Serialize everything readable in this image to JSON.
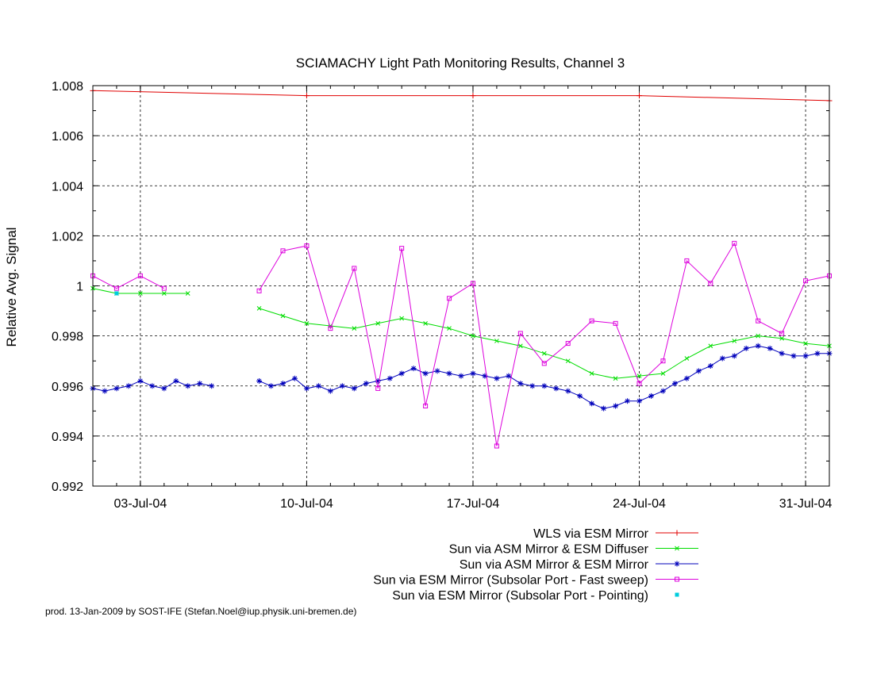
{
  "chart_data": {
    "type": "line",
    "title": "SCIAMACHY Light Path Monitoring Results, Channel 3",
    "xlabel": "",
    "ylabel": "Relative Avg. Signal",
    "xlim": [
      "2004-07-01",
      "2004-08-01"
    ],
    "ylim": [
      0.992,
      1.008
    ],
    "x_ticks": [
      "2004-07-03",
      "2004-07-10",
      "2004-07-17",
      "2004-07-24",
      "2004-07-31"
    ],
    "x_tick_labels": [
      "03-Jul-04",
      "10-Jul-04",
      "17-Jul-04",
      "24-Jul-04",
      "31-Jul-04"
    ],
    "y_ticks": [
      0.992,
      0.994,
      0.996,
      0.998,
      1,
      1.002,
      1.004,
      1.006,
      1.008
    ],
    "y_tick_labels": [
      "0.992",
      "0.994",
      "0.996",
      "0.998",
      "1",
      "1.002",
      "1.004",
      "1.006",
      "1.008"
    ],
    "grid": true,
    "legend_position": "bottom-right",
    "series": [
      {
        "name": "WLS via ESM Mirror",
        "color": "#e00000",
        "marker": "plus",
        "connect_gap_days": 20,
        "points": [
          [
            "2004-07-01",
            1.0078
          ],
          [
            "2004-07-10",
            1.0076
          ],
          [
            "2004-07-17",
            1.0076
          ],
          [
            "2004-07-24",
            1.0076
          ],
          [
            "2004-08-01",
            1.0074
          ]
        ]
      },
      {
        "name": "Sun via ASM Mirror & ESM Diffuser",
        "color": "#00dd00",
        "marker": "cross",
        "connect_gap_days": 2,
        "points": [
          [
            "2004-07-01",
            0.9999
          ],
          [
            "2004-07-02",
            0.9997
          ],
          [
            "2004-07-03",
            0.9997
          ],
          [
            "2004-07-04",
            0.9997
          ],
          [
            "2004-07-05",
            0.9997
          ],
          [
            "2004-07-08",
            0.9991
          ],
          [
            "2004-07-09",
            0.9988
          ],
          [
            "2004-07-10",
            0.9985
          ],
          [
            "2004-07-11",
            0.9984
          ],
          [
            "2004-07-12",
            0.9983
          ],
          [
            "2004-07-13",
            0.9985
          ],
          [
            "2004-07-14",
            0.9987
          ],
          [
            "2004-07-15",
            0.9985
          ],
          [
            "2004-07-16",
            0.9983
          ],
          [
            "2004-07-17",
            0.998
          ],
          [
            "2004-07-18",
            0.9978
          ],
          [
            "2004-07-19",
            0.9976
          ],
          [
            "2004-07-20",
            0.9973
          ],
          [
            "2004-07-21",
            0.997
          ],
          [
            "2004-07-22",
            0.9965
          ],
          [
            "2004-07-23",
            0.9963
          ],
          [
            "2004-07-24",
            0.9964
          ],
          [
            "2004-07-25",
            0.9965
          ],
          [
            "2004-07-26",
            0.9971
          ],
          [
            "2004-07-27",
            0.9976
          ],
          [
            "2004-07-28",
            0.9978
          ],
          [
            "2004-07-29",
            0.998
          ],
          [
            "2004-07-30",
            0.9979
          ],
          [
            "2004-07-31",
            0.9977
          ],
          [
            "2004-08-01",
            0.9976
          ]
        ]
      },
      {
        "name": "Sun via ASM Mirror & ESM Mirror",
        "color": "#0000bb",
        "marker": "star",
        "connect_gap_days": 1,
        "points": [
          [
            "2004-07-01",
            0.9959
          ],
          [
            "2004-07-01T12",
            0.9958
          ],
          [
            "2004-07-02",
            0.9959
          ],
          [
            "2004-07-02T12",
            0.996
          ],
          [
            "2004-07-03",
            0.9962
          ],
          [
            "2004-07-03T12",
            0.996
          ],
          [
            "2004-07-04",
            0.9959
          ],
          [
            "2004-07-04T12",
            0.9962
          ],
          [
            "2004-07-05",
            0.996
          ],
          [
            "2004-07-05T12",
            0.9961
          ],
          [
            "2004-07-06",
            0.996
          ],
          [
            "2004-07-08",
            0.9962
          ],
          [
            "2004-07-08T12",
            0.996
          ],
          [
            "2004-07-09",
            0.9961
          ],
          [
            "2004-07-09T12",
            0.9963
          ],
          [
            "2004-07-10",
            0.9959
          ],
          [
            "2004-07-10T12",
            0.996
          ],
          [
            "2004-07-11",
            0.9958
          ],
          [
            "2004-07-11T12",
            0.996
          ],
          [
            "2004-07-12",
            0.9959
          ],
          [
            "2004-07-12T12",
            0.9961
          ],
          [
            "2004-07-13",
            0.9962
          ],
          [
            "2004-07-13T12",
            0.9963
          ],
          [
            "2004-07-14",
            0.9965
          ],
          [
            "2004-07-14T12",
            0.9967
          ],
          [
            "2004-07-15",
            0.9965
          ],
          [
            "2004-07-15T12",
            0.9966
          ],
          [
            "2004-07-16",
            0.9965
          ],
          [
            "2004-07-16T12",
            0.9964
          ],
          [
            "2004-07-17",
            0.9965
          ],
          [
            "2004-07-17T12",
            0.9964
          ],
          [
            "2004-07-18",
            0.9963
          ],
          [
            "2004-07-18T12",
            0.9964
          ],
          [
            "2004-07-19",
            0.9961
          ],
          [
            "2004-07-19T12",
            0.996
          ],
          [
            "2004-07-20",
            0.996
          ],
          [
            "2004-07-20T12",
            0.9959
          ],
          [
            "2004-07-21",
            0.9958
          ],
          [
            "2004-07-21T12",
            0.9956
          ],
          [
            "2004-07-22",
            0.9953
          ],
          [
            "2004-07-22T12",
            0.9951
          ],
          [
            "2004-07-23",
            0.9952
          ],
          [
            "2004-07-23T12",
            0.9954
          ],
          [
            "2004-07-24",
            0.9954
          ],
          [
            "2004-07-24T12",
            0.9956
          ],
          [
            "2004-07-25",
            0.9958
          ],
          [
            "2004-07-25T12",
            0.9961
          ],
          [
            "2004-07-26",
            0.9963
          ],
          [
            "2004-07-26T12",
            0.9966
          ],
          [
            "2004-07-27",
            0.9968
          ],
          [
            "2004-07-27T12",
            0.9971
          ],
          [
            "2004-07-28",
            0.9972
          ],
          [
            "2004-07-28T12",
            0.9975
          ],
          [
            "2004-07-29",
            0.9976
          ],
          [
            "2004-07-29T12",
            0.9975
          ],
          [
            "2004-07-30",
            0.9973
          ],
          [
            "2004-07-30T12",
            0.9972
          ],
          [
            "2004-07-31",
            0.9972
          ],
          [
            "2004-07-31T12",
            0.9973
          ],
          [
            "2004-08-01",
            0.9973
          ]
        ]
      },
      {
        "name": "Sun via ESM Mirror (Subsolar Port - Fast sweep)",
        "color": "#dd00dd",
        "marker": "square",
        "connect_gap_days": 2,
        "points": [
          [
            "2004-07-01",
            1.0004
          ],
          [
            "2004-07-02",
            0.9999
          ],
          [
            "2004-07-03",
            1.0004
          ],
          [
            "2004-07-04",
            0.9999
          ],
          [
            "2004-07-08",
            0.9998
          ],
          [
            "2004-07-09",
            1.0014
          ],
          [
            "2004-07-10",
            1.0016
          ],
          [
            "2004-07-11",
            0.9983
          ],
          [
            "2004-07-12",
            1.0007
          ],
          [
            "2004-07-13",
            0.9959
          ],
          [
            "2004-07-14",
            1.0015
          ],
          [
            "2004-07-15",
            0.9952
          ],
          [
            "2004-07-16",
            0.9995
          ],
          [
            "2004-07-17",
            1.0001
          ],
          [
            "2004-07-18",
            0.9936
          ],
          [
            "2004-07-19",
            0.9981
          ],
          [
            "2004-07-20",
            0.9969
          ],
          [
            "2004-07-21",
            0.9977
          ],
          [
            "2004-07-22",
            0.9986
          ],
          [
            "2004-07-23",
            0.9985
          ],
          [
            "2004-07-24",
            0.9961
          ],
          [
            "2004-07-25",
            0.997
          ],
          [
            "2004-07-26",
            1.001
          ],
          [
            "2004-07-27",
            1.0001
          ],
          [
            "2004-07-28",
            1.0017
          ],
          [
            "2004-07-29",
            0.9986
          ],
          [
            "2004-07-30",
            0.9981
          ],
          [
            "2004-07-31",
            1.0002
          ],
          [
            "2004-08-01",
            1.0004
          ]
        ]
      },
      {
        "name": "Sun via ESM Mirror (Subsolar Port - Pointing)",
        "color": "#00ccdd",
        "marker": "dot",
        "connect_gap_days": 0,
        "points": [
          [
            "2004-07-02",
            0.9997
          ]
        ]
      }
    ],
    "footer": "prod. 13-Jan-2009 by SOST-IFE (Stefan.Noel@iup.physik.uni-bremen.de)"
  }
}
